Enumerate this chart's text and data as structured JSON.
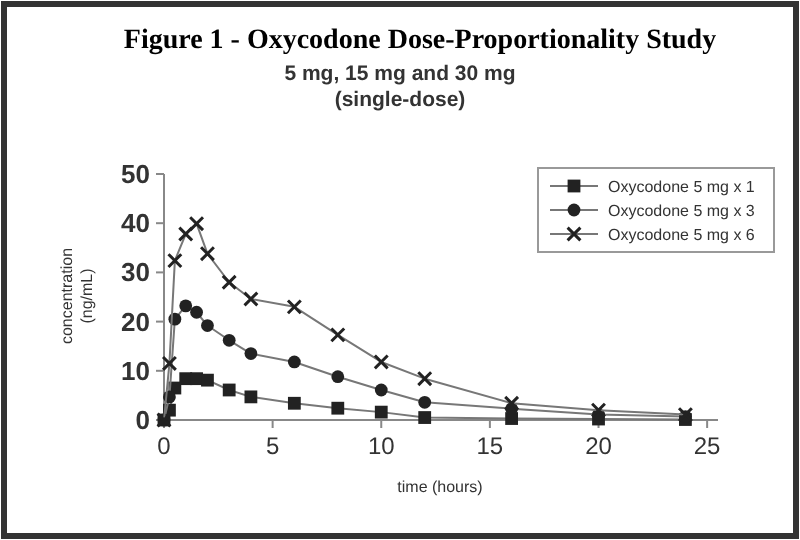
{
  "chart_data": {
    "type": "line",
    "title": "Figure 1 - Oxycodone Dose-Proportionality Study",
    "subtitle": "5 mg, 15 mg and 30 mg\n(single-dose)",
    "xlabel": "time (hours)",
    "ylabel": "concentration\n(ng/mL)",
    "x": [
      0,
      0.25,
      0.5,
      1,
      1.5,
      2,
      3,
      4,
      6,
      8,
      10,
      12,
      16,
      20,
      24
    ],
    "series": [
      {
        "name": "Oxycodone 5 mg x 1",
        "color": "#222222",
        "marker": "square",
        "values": [
          0,
          2,
          6.5,
          8.4,
          8.4,
          8.1,
          6.1,
          4.7,
          3.4,
          2.4,
          1.6,
          0.5,
          0.3,
          0.2,
          0.1
        ]
      },
      {
        "name": "Oxycodone 5 mg x 3",
        "color": "#222222",
        "marker": "circle",
        "values": [
          0,
          4.7,
          20.5,
          23.2,
          21.9,
          19.2,
          16.2,
          13.5,
          11.8,
          8.8,
          6.1,
          3.6,
          2.3,
          1.1,
          0.7
        ]
      },
      {
        "name": "Oxycodone 5 mg x 6",
        "color": "#222222",
        "marker": "cross",
        "values": [
          0,
          11.5,
          32.4,
          37.8,
          39.9,
          33.8,
          28,
          24.6,
          23,
          17.3,
          11.8,
          8.4,
          3.4,
          2,
          1.1
        ]
      }
    ],
    "xlim": [
      0,
      25.5
    ],
    "xticks": [
      0,
      5,
      10,
      15,
      20,
      25
    ],
    "ylim": [
      0,
      50
    ],
    "yticks": [
      0,
      10,
      20,
      30,
      40,
      50
    ],
    "grid": false,
    "legend": "top right",
    "line_style": "solid"
  }
}
